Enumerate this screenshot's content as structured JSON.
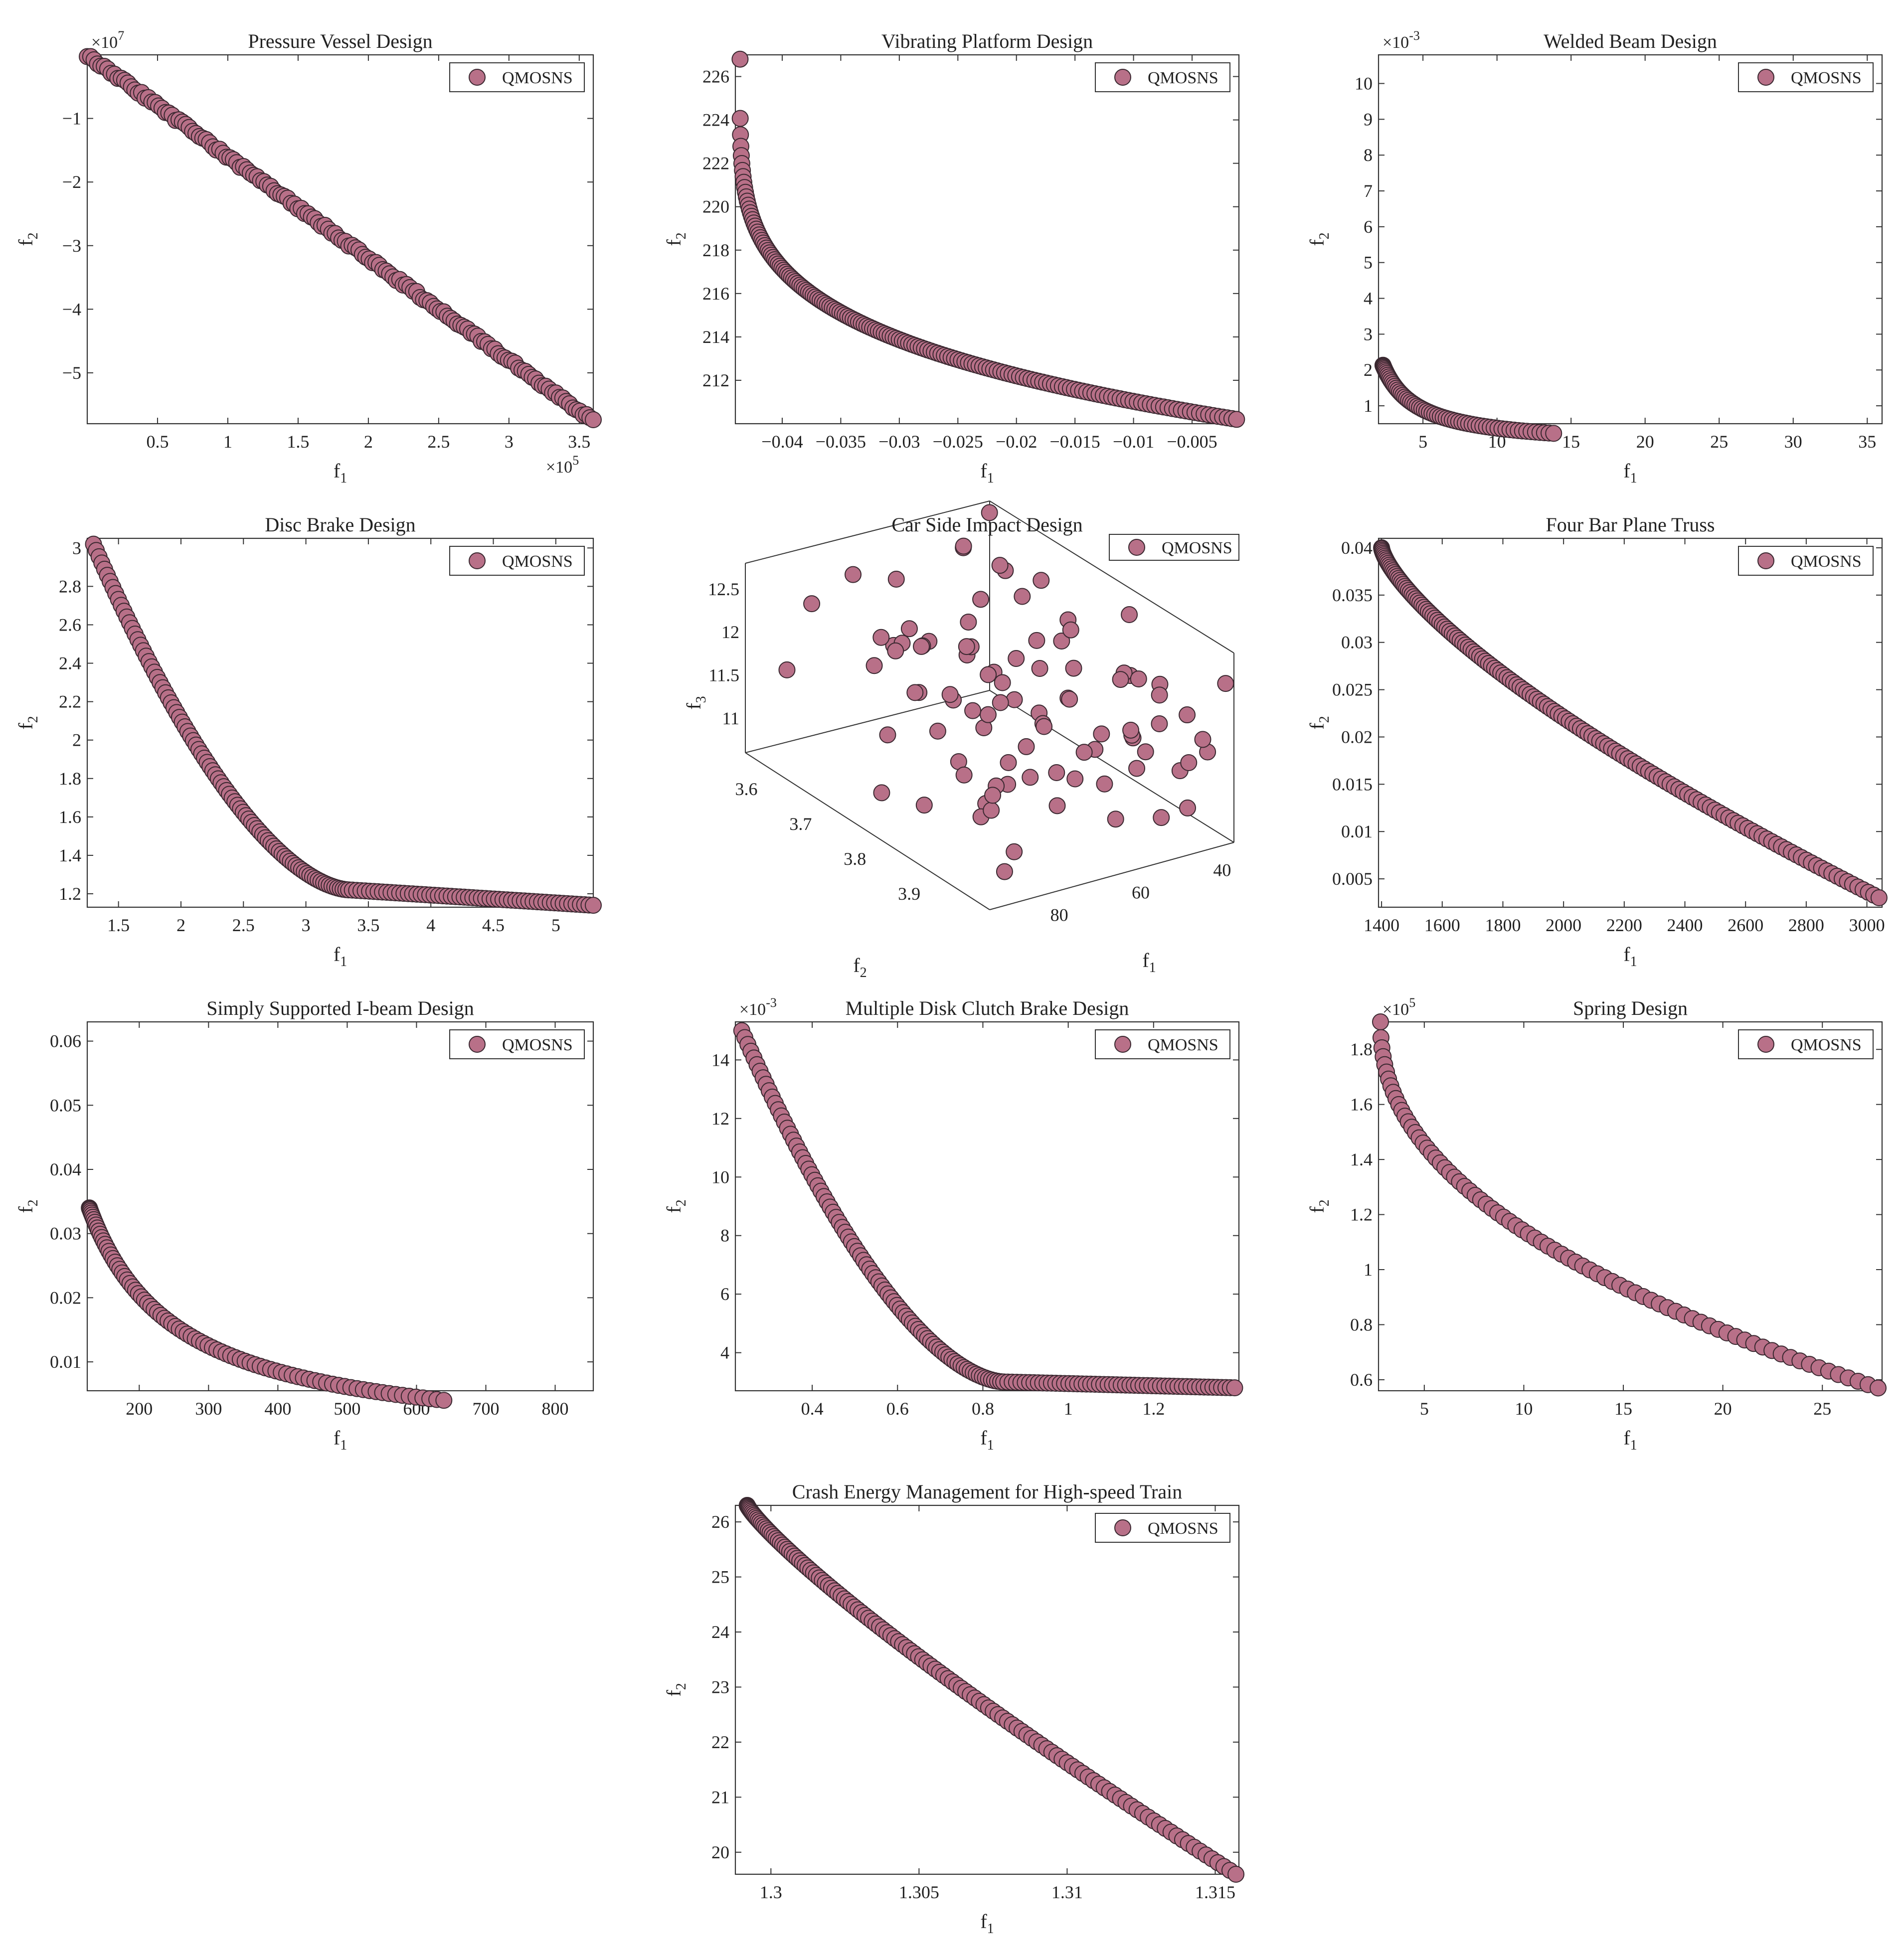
{
  "figure": {
    "legend_label": "QMOSNS",
    "marker_color": "#b87088",
    "marker_edge_color": "#3a2830"
  },
  "chart_data": [
    {
      "id": "pressure",
      "type": "scatter",
      "title": "Pressure Vessel Design",
      "xlabel": "f",
      "xlabel_sub": "1",
      "ylabel": "f",
      "ylabel_sub": "2",
      "xlim": [
        0.0,
        3.6
      ],
      "ylim": [
        -5.8,
        0.0
      ],
      "xticks": [
        0.5,
        1,
        1.5,
        2,
        2.5,
        3,
        3.5
      ],
      "xtick_labels": [
        "0.5",
        "1",
        "1.5",
        "2",
        "2.5",
        "3",
        "3.5"
      ],
      "yticks": [
        -5,
        -4,
        -3,
        -2,
        -1
      ],
      "ytick_labels": [
        "−5",
        "−4",
        "−3",
        "−2",
        "−1"
      ],
      "x_exponent": "5",
      "y_exponent": "7",
      "legend": "top-right",
      "gen": {
        "kind": "linear",
        "n": 150,
        "x0": 0.0,
        "x1": 3.6,
        "a": 0.0,
        "b": -1.6
      }
    },
    {
      "id": "vibrating",
      "type": "scatter",
      "title": "Vibrating Platform Design",
      "xlabel": "f",
      "xlabel_sub": "1",
      "ylabel": "f",
      "ylabel_sub": "2",
      "xlim": [
        -0.044,
        -0.001
      ],
      "ylim": [
        210.0,
        227.0
      ],
      "xticks": [
        -0.04,
        -0.035,
        -0.03,
        -0.025,
        -0.02,
        -0.015,
        -0.01,
        -0.005
      ],
      "xtick_labels": [
        "−0.04",
        "−0.035",
        "−0.03",
        "−0.025",
        "−0.02",
        "−0.015",
        "−0.01",
        "−0.005"
      ],
      "yticks": [
        212,
        214,
        216,
        218,
        220,
        222,
        224,
        226
      ],
      "ytick_labels": [
        "212",
        "214",
        "216",
        "218",
        "220",
        "222",
        "224",
        "226"
      ],
      "legend": "top-right",
      "gen": {
        "kind": "power",
        "n": 170,
        "x0": -0.0436,
        "x1": -0.0012,
        "y0": 226.8,
        "y1": 210.2,
        "p": 0.22
      }
    },
    {
      "id": "welded",
      "type": "scatter",
      "title": "Welded Beam Design",
      "xlabel": "f",
      "xlabel_sub": "1",
      "ylabel": "f",
      "ylabel_sub": "2",
      "xlim": [
        2.0,
        36.0
      ],
      "ylim": [
        0.5,
        10.8
      ],
      "xticks": [
        5,
        10,
        15,
        20,
        25,
        30,
        35
      ],
      "xtick_labels": [
        "5",
        "10",
        "15",
        "20",
        "25",
        "30",
        "35"
      ],
      "yticks": [
        1,
        2,
        3,
        4,
        5,
        6,
        7,
        8,
        9,
        10
      ],
      "ytick_labels": [
        "1",
        "2",
        "3",
        "4",
        "5",
        "6",
        "7",
        "8",
        "9",
        "10"
      ],
      "y_exponent": "-3",
      "legend": "top-right",
      "gen": {
        "kind": "hyper",
        "n": 120,
        "x0": 2.3,
        "x1": 35.6,
        "c": 15.0,
        "d": -0.15,
        "p": 0.35
      }
    },
    {
      "id": "disc",
      "type": "scatter",
      "title": "Disc Brake Design",
      "xlabel": "f",
      "xlabel_sub": "1",
      "ylabel": "f",
      "ylabel_sub": "2",
      "xlim": [
        1.25,
        5.3
      ],
      "ylim": [
        1.13,
        3.05
      ],
      "xticks": [
        1.5,
        2,
        2.5,
        3,
        3.5,
        4,
        4.5,
        5
      ],
      "xtick_labels": [
        "1.5",
        "2",
        "2.5",
        "3",
        "3.5",
        "4",
        "4.5",
        "5"
      ],
      "yticks": [
        1.2,
        1.4,
        1.6,
        1.8,
        2,
        2.2,
        2.4,
        2.6,
        2.8,
        3
      ],
      "ytick_labels": [
        "1.2",
        "1.4",
        "1.6",
        "1.8",
        "2",
        "2.2",
        "2.4",
        "2.6",
        "2.8",
        "3"
      ],
      "legend": "top-right",
      "gen": {
        "kind": "disc",
        "n": 150,
        "x0": 1.3,
        "xk": 3.35,
        "x1": 5.3,
        "y0": 3.02,
        "yk": 1.22,
        "y1": 1.14
      }
    },
    {
      "id": "carside",
      "type": "scatter3d",
      "title": "Car Side Impact Design",
      "xlabel": "f",
      "xlabel_sub": "1",
      "ylabel": "f",
      "ylabel_sub": "2",
      "zlabel": "f",
      "zlabel_sub": "3",
      "xticks": [
        40,
        60,
        80
      ],
      "xtick_labels": [
        "40",
        "60",
        "80"
      ],
      "yticks": [
        3.6,
        3.7,
        3.8,
        3.9
      ],
      "ytick_labels": [
        "3.6",
        "3.7",
        "3.8",
        "3.9"
      ],
      "zticks": [
        11,
        11.5,
        12,
        12.5
      ],
      "ztick_labels": [
        "11",
        "11.5",
        "12",
        "12.5"
      ],
      "xlim": [
        30,
        90
      ],
      "ylim": [
        3.55,
        4.0
      ],
      "zlim": [
        10.6,
        12.8
      ],
      "legend": "top-right",
      "gen": {
        "kind": "random3d",
        "n": 95,
        "seed": 17
      }
    },
    {
      "id": "fourbar",
      "type": "scatter",
      "title": "Four Bar Plane Truss",
      "xlabel": "f",
      "xlabel_sub": "1",
      "ylabel": "f",
      "ylabel_sub": "2",
      "xlim": [
        1390.0,
        3050.0
      ],
      "ylim": [
        0.002,
        0.041
      ],
      "xticks": [
        1400,
        1600,
        1800,
        2000,
        2200,
        2400,
        2600,
        2800,
        3000
      ],
      "xtick_labels": [
        "1400",
        "1600",
        "1800",
        "2000",
        "2200",
        "2400",
        "2600",
        "2800",
        "3000"
      ],
      "yticks": [
        0.005,
        0.01,
        0.015,
        0.02,
        0.025,
        0.03,
        0.035,
        0.04
      ],
      "ytick_labels": [
        "0.005",
        "0.01",
        "0.015",
        "0.02",
        "0.025",
        "0.03",
        "0.035",
        "0.04"
      ],
      "legend": "top-right",
      "gen": {
        "kind": "power",
        "n": 150,
        "x0": 1400.0,
        "x1": 3040.0,
        "y0": 0.04,
        "y1": 0.003,
        "p": 0.72
      }
    },
    {
      "id": "ibeam",
      "type": "scatter",
      "title": "Simply Supported I-beam Design",
      "xlabel": "f",
      "xlabel_sub": "1",
      "ylabel": "f",
      "ylabel_sub": "2",
      "xlim": [
        125.0,
        855.0
      ],
      "ylim": [
        0.0055,
        0.063
      ],
      "xticks": [
        200,
        300,
        400,
        500,
        600,
        700,
        800
      ],
      "xtick_labels": [
        "200",
        "300",
        "400",
        "500",
        "600",
        "700",
        "800"
      ],
      "yticks": [
        0.01,
        0.02,
        0.03,
        0.04,
        0.05,
        0.06
      ],
      "ytick_labels": [
        "0.01",
        "0.02",
        "0.03",
        "0.04",
        "0.05",
        "0.06"
      ],
      "legend": "top-right",
      "gen": {
        "kind": "hyper",
        "n": 110,
        "x0": 128.0,
        "x1": 850.0,
        "c": 8.0,
        "d": -0.0035,
        "p": 0.6
      }
    },
    {
      "id": "clutch",
      "type": "scatter",
      "title": "Multiple Disk Clutch Brake Design",
      "xlabel": "f",
      "xlabel_sub": "1",
      "ylabel": "f",
      "ylabel_sub": "2",
      "xlim": [
        0.22,
        1.4
      ],
      "ylim": [
        2.7,
        15.3
      ],
      "xticks": [
        0.4,
        0.6,
        0.8,
        1,
        1.2
      ],
      "xtick_labels": [
        "0.4",
        "0.6",
        "0.8",
        "1",
        "1.2"
      ],
      "yticks": [
        4,
        6,
        8,
        10,
        12,
        14
      ],
      "ytick_labels": [
        "4",
        "6",
        "8",
        "10",
        "12",
        "14"
      ],
      "y_exponent": "-3",
      "legend": "top-right",
      "gen": {
        "kind": "disc",
        "n": 140,
        "x0": 0.235,
        "xk": 0.85,
        "x1": 1.39,
        "y0": 15.0,
        "yk": 3.0,
        "y1": 2.8
      }
    },
    {
      "id": "spring",
      "type": "scatter",
      "title": "Spring Design",
      "xlabel": "f",
      "xlabel_sub": "1",
      "ylabel": "f",
      "ylabel_sub": "2",
      "xlim": [
        2.7,
        28.0
      ],
      "ylim": [
        0.56,
        1.9
      ],
      "xticks": [
        5,
        10,
        15,
        20,
        25
      ],
      "xtick_labels": [
        "5",
        "10",
        "15",
        "20",
        "25"
      ],
      "yticks": [
        0.6,
        0.8,
        1,
        1.2,
        1.4,
        1.6,
        1.8
      ],
      "ytick_labels": [
        "0.6",
        "0.8",
        "1",
        "1.2",
        "1.4",
        "1.6",
        "1.8"
      ],
      "y_exponent": "5",
      "legend": "top-right",
      "gen": {
        "kind": "power",
        "n": 80,
        "x0": 2.8,
        "x1": 27.8,
        "y0": 1.9,
        "y1": 0.57,
        "p": 0.45
      }
    },
    {
      "id": "train",
      "type": "scatter",
      "title": "Crash Energy Management for High-speed Train",
      "xlabel": "f",
      "xlabel_sub": "1",
      "ylabel": "f",
      "ylabel_sub": "2",
      "xlim": [
        1.2988,
        1.3158
      ],
      "ylim": [
        19.6,
        26.3
      ],
      "xticks": [
        1.3,
        1.305,
        1.31,
        1.315
      ],
      "xtick_labels": [
        "1.3",
        "1.305",
        "1.31",
        "1.315"
      ],
      "yticks": [
        20,
        21,
        22,
        23,
        24,
        25,
        26
      ],
      "ytick_labels": [
        "20",
        "21",
        "22",
        "23",
        "24",
        "25",
        "26"
      ],
      "legend": "top-right",
      "gen": {
        "kind": "power",
        "n": 130,
        "x0": 1.2992,
        "x1": 1.3157,
        "y0": 26.3,
        "y1": 19.6,
        "p": 0.85
      }
    }
  ]
}
